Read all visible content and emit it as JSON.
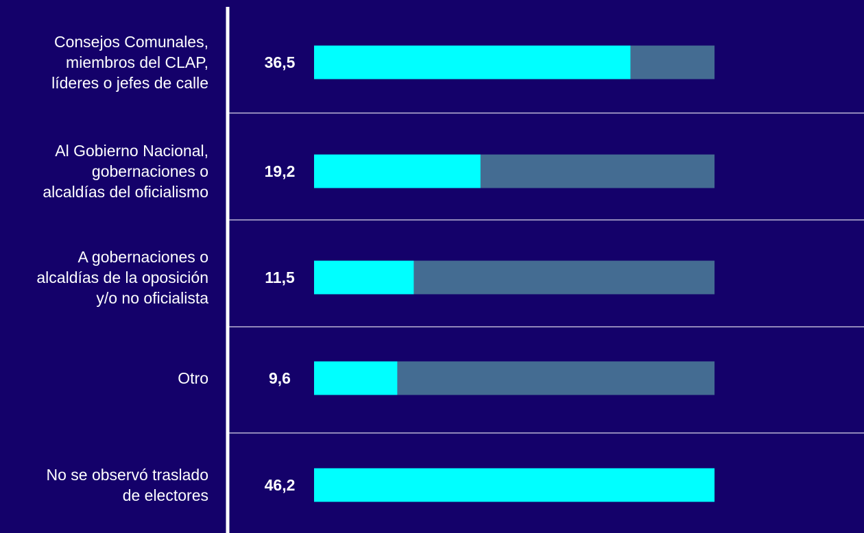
{
  "chart_data": {
    "type": "bar",
    "orientation": "horizontal",
    "categories": [
      [
        "Consejos Comunales,",
        "miembros del CLAP,",
        "líderes o jefes de calle"
      ],
      [
        "Al Gobierno Nacional,",
        "gobernaciones o",
        "alcaldías del oficialismo"
      ],
      [
        "A gobernaciones o",
        "alcaldías de la oposición",
        "y/o no oficialista"
      ],
      [
        "Otro"
      ],
      [
        "No se observó traslado",
        "de electores"
      ]
    ],
    "values": [
      36.5,
      19.2,
      11.5,
      9.6,
      46.2
    ],
    "value_labels": [
      "36,5",
      "19,2",
      "11,5",
      "9,6",
      "46,2"
    ],
    "xlim": [
      0,
      46.2
    ],
    "grid": false,
    "legend": "none",
    "colors": {
      "background": "#14016a",
      "bar_fill": "#00ffff",
      "bar_track": "#446c92",
      "axis_line": "#ffffff",
      "separator": "#ffffff",
      "text": "#ffffff"
    }
  }
}
